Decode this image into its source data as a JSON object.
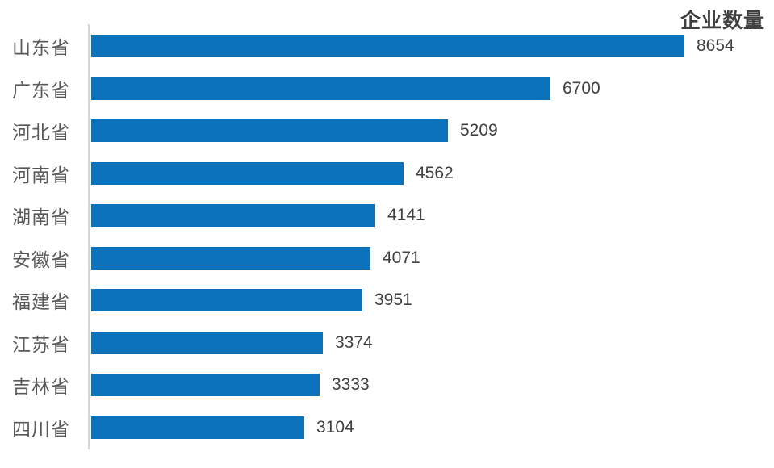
{
  "chart_data": {
    "type": "bar",
    "orientation": "horizontal",
    "title": "企业数量",
    "categories": [
      "山东省",
      "广东省",
      "河北省",
      "河南省",
      "湖南省",
      "安徽省",
      "福建省",
      "江苏省",
      "吉林省",
      "四川省"
    ],
    "values": [
      8654,
      6700,
      5209,
      4562,
      4141,
      4071,
      3951,
      3374,
      3333,
      3104
    ],
    "value_labels": [
      "8654",
      "6700",
      "5209",
      "4562",
      "4141",
      "4071",
      "3951",
      "3374",
      "3333",
      "3104"
    ],
    "xlim": [
      0,
      8654
    ],
    "grid": false,
    "legend_position": "top-right",
    "colors": {
      "bar": "#0c72bc",
      "axis_line": "#d6d6d6",
      "category_label": "#595959",
      "value_label": "#404040",
      "title": "#404040",
      "background": "#ffffff"
    }
  }
}
